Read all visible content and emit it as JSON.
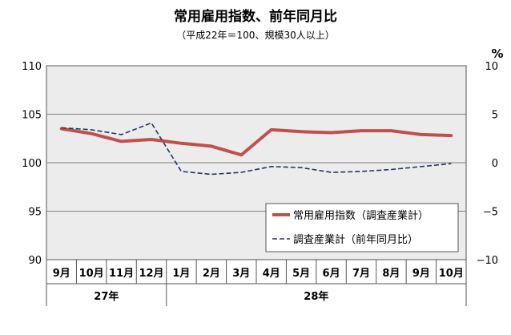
{
  "chart_data": {
    "type": "line",
    "title": "常用雇用指数、前年同月比",
    "subtitle": "（平成22年＝100、規模30人以上）",
    "categories": [
      "9月",
      "10月",
      "11月",
      "12月",
      "1月",
      "2月",
      "3月",
      "4月",
      "5月",
      "6月",
      "7月",
      "8月",
      "9月",
      "10月"
    ],
    "year_groups": [
      {
        "label": "27年",
        "count": 4
      },
      {
        "label": "28年",
        "count": 10
      }
    ],
    "y_left": {
      "min": 90,
      "max": 110,
      "ticks": [
        90,
        95,
        100,
        105,
        110
      ]
    },
    "y_right": {
      "min": -10,
      "max": 10,
      "ticks": [
        -10,
        -5,
        0,
        5,
        10
      ],
      "unit": "%"
    },
    "grid": true,
    "legend_position": "bottom-right",
    "series": [
      {
        "name": "常用雇用指数（調査産業計）",
        "axis": "left",
        "color": "#c0504d",
        "style": "solid",
        "values": [
          103.5,
          103.0,
          102.2,
          102.4,
          102.0,
          101.7,
          100.8,
          103.4,
          103.2,
          103.1,
          103.3,
          103.3,
          102.9,
          102.8
        ]
      },
      {
        "name": "調査産業計（前年同月比）",
        "axis": "right",
        "color": "#1f3864",
        "style": "dashed",
        "values": [
          3.6,
          3.4,
          2.9,
          4.1,
          -0.9,
          -1.2,
          -1.0,
          -0.4,
          -0.5,
          -1.0,
          -0.9,
          -0.7,
          -0.4,
          -0.1
        ]
      }
    ]
  }
}
